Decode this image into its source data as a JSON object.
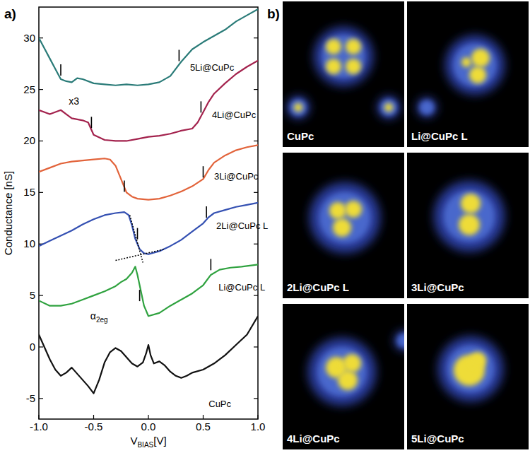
{
  "chart_data": {
    "type": "line",
    "panel": "a)",
    "ylabel": "Conductance [nS]",
    "xlabel": {
      "text": "V",
      "sub": "BIAS",
      "unit": "[V]"
    },
    "xlim": [
      -1,
      1
    ],
    "xticks": [
      {
        "value": -1,
        "label": "-1.0"
      },
      {
        "value": -0.5,
        "label": "-0.5"
      },
      {
        "value": 0,
        "label": "0.0"
      },
      {
        "value": 0.5,
        "label": "0.5"
      },
      {
        "value": 1,
        "label": "1.0"
      }
    ],
    "ylim": [
      -7,
      33
    ],
    "yticks": [
      -5,
      0,
      5,
      10,
      15,
      20,
      25,
      30
    ],
    "grid": false,
    "series": [
      {
        "name": "CuPc",
        "color": "#111111",
        "label_x": 0.55,
        "label_y": -5.5,
        "x": [
          -1,
          -0.95,
          -0.9,
          -0.85,
          -0.8,
          -0.75,
          -0.7,
          -0.65,
          -0.6,
          -0.55,
          -0.5,
          -0.45,
          -0.4,
          -0.35,
          -0.3,
          -0.25,
          -0.2,
          -0.15,
          -0.1,
          -0.05,
          -0.02,
          0,
          0.02,
          0.05,
          0.1,
          0.15,
          0.2,
          0.25,
          0.3,
          0.35,
          0.4,
          0.5,
          0.6,
          0.7,
          0.8,
          0.9,
          1
        ],
        "values": [
          1.2,
          0,
          -1.2,
          -2.2,
          -2.8,
          -2.5,
          -2.0,
          -2.6,
          -3.2,
          -3.8,
          -4.5,
          -3.2,
          -1.5,
          -0.5,
          -0.1,
          -0.4,
          -1.0,
          -1.6,
          -1.9,
          -1.5,
          -0.6,
          0.2,
          -0.8,
          -1.6,
          -1.4,
          -1.8,
          -2.4,
          -2.8,
          -3.0,
          -2.8,
          -2.5,
          -2.2,
          -1.6,
          -0.8,
          0.2,
          1.2,
          3.0
        ],
        "band_edges": []
      },
      {
        "name": "Li@CuPc L",
        "color": "#2fa23f",
        "label_x": 0.64,
        "label_y": 5.8,
        "x": [
          -1,
          -0.9,
          -0.8,
          -0.7,
          -0.6,
          -0.5,
          -0.4,
          -0.3,
          -0.25,
          -0.2,
          -0.15,
          -0.12,
          -0.1,
          -0.07,
          -0.04,
          0,
          0.1,
          0.2,
          0.3,
          0.4,
          0.5,
          0.57,
          0.65,
          0.75,
          0.85,
          1
        ],
        "values": [
          4.5,
          4.0,
          4.0,
          4.2,
          4.6,
          5.0,
          5.4,
          5.9,
          6.3,
          6.6,
          7.2,
          7.8,
          7.0,
          5.5,
          4.0,
          3.0,
          3.3,
          4.0,
          4.6,
          5.2,
          6.0,
          7.0,
          7.5,
          7.7,
          7.8,
          8.0
        ],
        "band_edges": [
          {
            "x": -0.08,
            "y": 5.0
          },
          {
            "x": 0.57,
            "y": 8.0
          }
        ]
      },
      {
        "name": "2Li@CuPc L",
        "color": "#3450b2",
        "label_x": 0.62,
        "label_y": 11.8,
        "x": [
          -1,
          -0.9,
          -0.8,
          -0.7,
          -0.6,
          -0.5,
          -0.4,
          -0.3,
          -0.22,
          -0.18,
          -0.15,
          -0.12,
          -0.08,
          -0.04,
          0,
          0.1,
          0.2,
          0.3,
          0.4,
          0.5,
          0.55,
          0.6,
          0.7,
          0.8,
          0.9,
          1
        ],
        "values": [
          9.8,
          10.3,
          10.8,
          11.3,
          11.9,
          12.4,
          12.8,
          13.0,
          13.1,
          12.8,
          11.8,
          10.5,
          9.5,
          9.1,
          9.0,
          9.3,
          9.8,
          10.4,
          11.2,
          12.0,
          12.6,
          13.0,
          13.3,
          13.6,
          13.8,
          14.0
        ],
        "band_edges": [
          {
            "x": -0.1,
            "y": 11.0
          },
          {
            "x": 0.53,
            "y": 13.1
          }
        ],
        "tangents": [
          {
            "x": [
              -0.17,
              -0.05
            ],
            "y": [
              12.8,
              8.2
            ]
          },
          {
            "x": [
              -0.3,
              0.15
            ],
            "y": [
              8.4,
              9.5
            ]
          }
        ]
      },
      {
        "name": "3Li@CuPc",
        "color": "#e2633a",
        "label_x": 0.6,
        "label_y": 16.6,
        "x": [
          -1,
          -0.9,
          -0.8,
          -0.7,
          -0.6,
          -0.5,
          -0.4,
          -0.35,
          -0.3,
          -0.25,
          -0.2,
          -0.15,
          -0.1,
          0,
          0.1,
          0.2,
          0.3,
          0.4,
          0.5,
          0.55,
          0.6,
          0.7,
          0.8,
          0.9,
          1
        ],
        "values": [
          17.0,
          17.4,
          17.8,
          18.0,
          18.1,
          18.2,
          18.3,
          18.2,
          17.6,
          16.3,
          15.0,
          14.6,
          14.4,
          14.3,
          14.4,
          14.7,
          15.1,
          15.6,
          16.3,
          17.2,
          17.9,
          18.6,
          19.1,
          19.4,
          19.6
        ],
        "band_edges": [
          {
            "x": -0.22,
            "y": 15.6
          },
          {
            "x": 0.5,
            "y": 17.0
          }
        ]
      },
      {
        "name": "4Li@CuPc",
        "color": "#a3224d",
        "label_x": 0.58,
        "label_y": 22.6,
        "x": [
          -1,
          -0.9,
          -0.8,
          -0.75,
          -0.7,
          -0.6,
          -0.55,
          -0.5,
          -0.4,
          -0.3,
          -0.2,
          -0.1,
          0,
          0.1,
          0.2,
          0.3,
          0.4,
          0.45,
          0.5,
          0.55,
          0.6,
          0.7,
          0.8,
          0.9,
          1
        ],
        "values": [
          23.0,
          22.6,
          23.0,
          22.6,
          22.2,
          22.0,
          21.8,
          20.6,
          20.1,
          20.0,
          20.0,
          20.2,
          20.4,
          20.5,
          20.7,
          21.0,
          21.2,
          21.8,
          22.8,
          23.8,
          24.6,
          25.6,
          26.5,
          27.2,
          27.8
        ],
        "band_edges": [
          {
            "x": -0.52,
            "y": 21.8
          },
          {
            "x": 0.48,
            "y": 23.3
          }
        ]
      },
      {
        "name": "5Li@CuPc",
        "color": "#2a7b78",
        "label_x": 0.38,
        "label_y": 27.2,
        "x": [
          -1,
          -0.95,
          -0.9,
          -0.85,
          -0.8,
          -0.75,
          -0.7,
          -0.65,
          -0.6,
          -0.5,
          -0.4,
          -0.3,
          -0.2,
          -0.1,
          0,
          0.1,
          0.2,
          0.3,
          0.4,
          0.5,
          0.6,
          0.7,
          0.8,
          0.9,
          1
        ],
        "values": [
          30.0,
          29.0,
          28.0,
          27.0,
          26.0,
          25.8,
          25.7,
          26.1,
          26.0,
          25.6,
          25.5,
          25.4,
          25.5,
          25.4,
          25.5,
          25.7,
          26.3,
          27.7,
          28.9,
          29.6,
          30.2,
          30.8,
          31.6,
          32.2,
          32.8
        ],
        "band_edges": [
          {
            "x": -0.8,
            "y": 26.9
          },
          {
            "x": 0.28,
            "y": 28.3
          }
        ]
      }
    ],
    "annotations": [
      {
        "text": "x3",
        "x": -0.68,
        "y": 23.9
      },
      {
        "text": "α",
        "sub": "2eg",
        "x": -0.45,
        "y": 3.0
      }
    ]
  },
  "images_panel": {
    "panel": "b)",
    "images": [
      {
        "label": "CuPc"
      },
      {
        "label": "Li@CuPc L"
      },
      {
        "label": "2Li@CuPc L"
      },
      {
        "label": "3Li@CuPc"
      },
      {
        "label": "4Li@CuPc"
      },
      {
        "label": "5Li@CuPc"
      }
    ]
  }
}
